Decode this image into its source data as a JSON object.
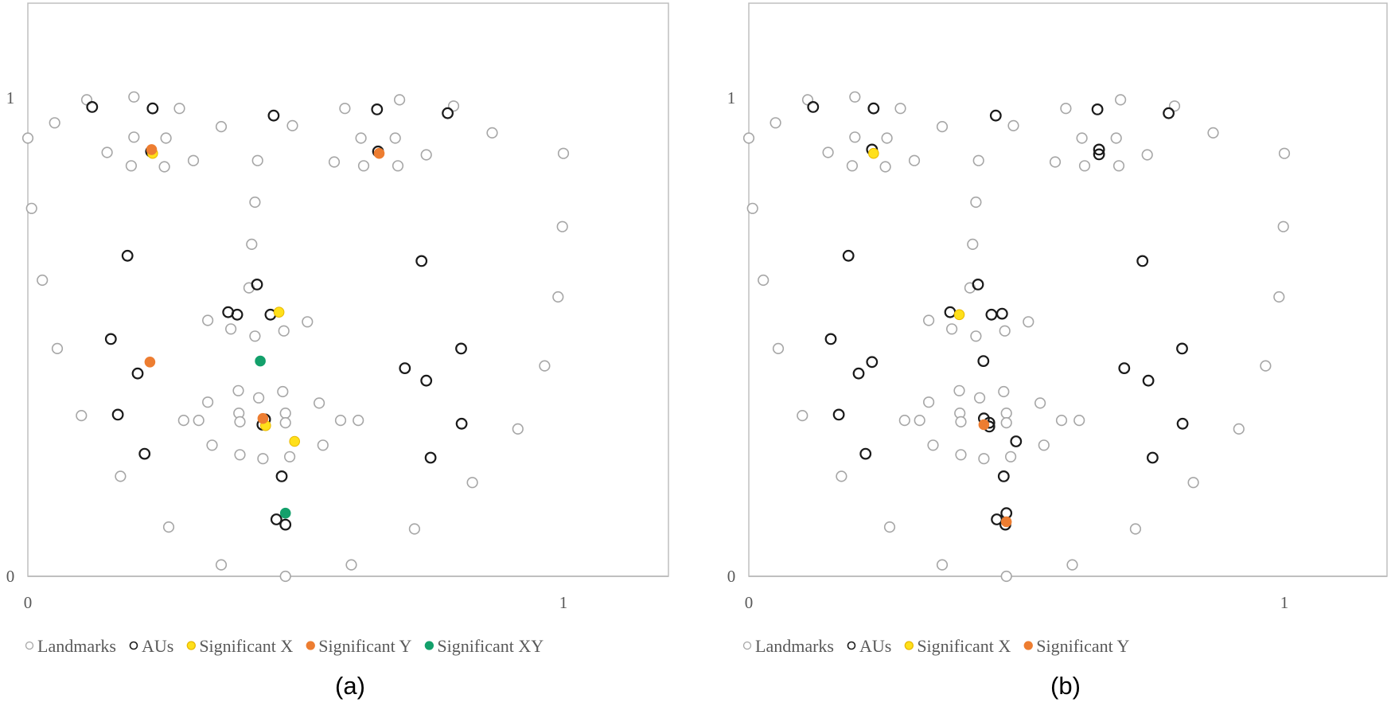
{
  "colors": {
    "landmarks": "#a6a6a6",
    "aus": "#1a1a1a",
    "significant_x": "#ffe01a",
    "significant_y": "#ed7d31",
    "significant_xy": "#13a06b",
    "axis": "#bfbfbf",
    "text": "#595959"
  },
  "chart_data": [
    {
      "type": "scatter",
      "caption": "(a)",
      "xlim": [
        0,
        1.2
      ],
      "ylim": [
        0,
        1.2
      ],
      "xticks": [
        "0",
        "1"
      ],
      "yticks": [
        "0",
        "1"
      ],
      "grid": false,
      "legend_position": "bottom",
      "legend": [
        "Landmarks",
        "AUs",
        "Significant X",
        "Significant Y",
        "Significant XY"
      ],
      "series": [
        {
          "name": "Landmarks",
          "marker": "hollow-gray",
          "points": [
            [
              0.0,
              0.916
            ],
            [
              0.05,
              0.948
            ],
            [
              0.11,
              0.996
            ],
            [
              0.198,
              1.002
            ],
            [
              0.283,
              0.978
            ],
            [
              0.361,
              0.94
            ],
            [
              0.494,
              0.942
            ],
            [
              0.592,
              0.978
            ],
            [
              0.694,
              0.996
            ],
            [
              0.795,
              0.983
            ],
            [
              0.867,
              0.927
            ],
            [
              1.0,
              0.884
            ],
            [
              0.148,
              0.886
            ],
            [
              0.198,
              0.918
            ],
            [
              0.258,
              0.916
            ],
            [
              0.193,
              0.858
            ],
            [
              0.255,
              0.856
            ],
            [
              0.309,
              0.869
            ],
            [
              0.429,
              0.869
            ],
            [
              0.572,
              0.866
            ],
            [
              0.622,
              0.916
            ],
            [
              0.686,
              0.916
            ],
            [
              0.627,
              0.858
            ],
            [
              0.691,
              0.858
            ],
            [
              0.744,
              0.881
            ],
            [
              0.007,
              0.769
            ],
            [
              0.424,
              0.782
            ],
            [
              0.418,
              0.694
            ],
            [
              0.998,
              0.731
            ],
            [
              0.027,
              0.619
            ],
            [
              0.413,
              0.603
            ],
            [
              0.99,
              0.584
            ],
            [
              0.336,
              0.535
            ],
            [
              0.379,
              0.517
            ],
            [
              0.424,
              0.502
            ],
            [
              0.478,
              0.513
            ],
            [
              0.522,
              0.532
            ],
            [
              0.055,
              0.476
            ],
            [
              0.965,
              0.44
            ],
            [
              0.393,
              0.388
            ],
            [
              0.431,
              0.373
            ],
            [
              0.476,
              0.386
            ],
            [
              0.336,
              0.364
            ],
            [
              0.544,
              0.362
            ],
            [
              0.1,
              0.336
            ],
            [
              0.291,
              0.326
            ],
            [
              0.319,
              0.326
            ],
            [
              0.394,
              0.341
            ],
            [
              0.396,
              0.323
            ],
            [
              0.481,
              0.341
            ],
            [
              0.481,
              0.321
            ],
            [
              0.584,
              0.326
            ],
            [
              0.617,
              0.326
            ],
            [
              0.915,
              0.308
            ],
            [
              0.344,
              0.274
            ],
            [
              0.551,
              0.274
            ],
            [
              0.396,
              0.254
            ],
            [
              0.439,
              0.246
            ],
            [
              0.489,
              0.25
            ],
            [
              0.173,
              0.209
            ],
            [
              0.83,
              0.196
            ],
            [
              0.263,
              0.103
            ],
            [
              0.722,
              0.099
            ],
            [
              0.361,
              0.024
            ],
            [
              0.604,
              0.024
            ],
            [
              0.481,
              0.0
            ]
          ]
        },
        {
          "name": "AUs",
          "marker": "hollow-black",
          "points": [
            [
              0.12,
              0.981
            ],
            [
              0.233,
              0.978
            ],
            [
              0.459,
              0.963
            ],
            [
              0.652,
              0.976
            ],
            [
              0.784,
              0.968
            ],
            [
              0.23,
              0.888
            ],
            [
              0.654,
              0.888
            ],
            [
              0.186,
              0.67
            ],
            [
              0.735,
              0.659
            ],
            [
              0.428,
              0.61
            ],
            [
              0.374,
              0.552
            ],
            [
              0.391,
              0.547
            ],
            [
              0.453,
              0.547
            ],
            [
              0.155,
              0.496
            ],
            [
              0.809,
              0.476
            ],
            [
              0.205,
              0.424
            ],
            [
              0.704,
              0.435
            ],
            [
              0.744,
              0.409
            ],
            [
              0.168,
              0.338
            ],
            [
              0.443,
              0.328
            ],
            [
              0.438,
              0.317
            ],
            [
              0.81,
              0.319
            ],
            [
              0.218,
              0.256
            ],
            [
              0.752,
              0.248
            ],
            [
              0.474,
              0.209
            ],
            [
              0.464,
              0.119
            ],
            [
              0.481,
              0.108
            ]
          ]
        },
        {
          "name": "Significant X",
          "marker": "filled-yellow",
          "points": [
            [
              0.233,
              0.884
            ],
            [
              0.469,
              0.552
            ],
            [
              0.444,
              0.315
            ],
            [
              0.498,
              0.282
            ]
          ]
        },
        {
          "name": "Significant Y",
          "marker": "filled-orange",
          "points": [
            [
              0.231,
              0.892
            ],
            [
              0.656,
              0.884
            ],
            [
              0.228,
              0.448
            ],
            [
              0.439,
              0.33
            ]
          ]
        },
        {
          "name": "Significant XY",
          "marker": "filled-green",
          "points": [
            [
              0.434,
              0.45
            ],
            [
              0.481,
              0.132
            ]
          ]
        }
      ]
    },
    {
      "type": "scatter",
      "caption": "(b)",
      "xlim": [
        0,
        1.2
      ],
      "ylim": [
        0,
        1.2
      ],
      "xticks": [
        "0",
        "1"
      ],
      "yticks": [
        "0",
        "1"
      ],
      "grid": false,
      "legend_position": "bottom",
      "legend": [
        "Landmarks",
        "AUs",
        "Significant X",
        "Significant Y"
      ],
      "series": [
        {
          "name": "Landmarks",
          "marker": "hollow-gray",
          "points": [
            [
              0.0,
              0.916
            ],
            [
              0.05,
              0.948
            ],
            [
              0.11,
              0.996
            ],
            [
              0.198,
              1.002
            ],
            [
              0.283,
              0.978
            ],
            [
              0.361,
              0.94
            ],
            [
              0.494,
              0.942
            ],
            [
              0.592,
              0.978
            ],
            [
              0.694,
              0.996
            ],
            [
              0.795,
              0.983
            ],
            [
              0.867,
              0.927
            ],
            [
              1.0,
              0.884
            ],
            [
              0.148,
              0.886
            ],
            [
              0.198,
              0.918
            ],
            [
              0.258,
              0.916
            ],
            [
              0.193,
              0.858
            ],
            [
              0.255,
              0.856
            ],
            [
              0.309,
              0.869
            ],
            [
              0.429,
              0.869
            ],
            [
              0.572,
              0.866
            ],
            [
              0.622,
              0.916
            ],
            [
              0.686,
              0.916
            ],
            [
              0.627,
              0.858
            ],
            [
              0.691,
              0.858
            ],
            [
              0.744,
              0.881
            ],
            [
              0.007,
              0.769
            ],
            [
              0.424,
              0.782
            ],
            [
              0.418,
              0.694
            ],
            [
              0.998,
              0.731
            ],
            [
              0.027,
              0.619
            ],
            [
              0.413,
              0.603
            ],
            [
              0.99,
              0.584
            ],
            [
              0.336,
              0.535
            ],
            [
              0.379,
              0.517
            ],
            [
              0.424,
              0.502
            ],
            [
              0.478,
              0.513
            ],
            [
              0.522,
              0.532
            ],
            [
              0.055,
              0.476
            ],
            [
              0.965,
              0.44
            ],
            [
              0.393,
              0.388
            ],
            [
              0.431,
              0.373
            ],
            [
              0.476,
              0.386
            ],
            [
              0.336,
              0.364
            ],
            [
              0.544,
              0.362
            ],
            [
              0.1,
              0.336
            ],
            [
              0.291,
              0.326
            ],
            [
              0.319,
              0.326
            ],
            [
              0.394,
              0.341
            ],
            [
              0.396,
              0.323
            ],
            [
              0.481,
              0.341
            ],
            [
              0.481,
              0.321
            ],
            [
              0.584,
              0.326
            ],
            [
              0.617,
              0.326
            ],
            [
              0.915,
              0.308
            ],
            [
              0.344,
              0.274
            ],
            [
              0.551,
              0.274
            ],
            [
              0.396,
              0.254
            ],
            [
              0.439,
              0.246
            ],
            [
              0.489,
              0.25
            ],
            [
              0.173,
              0.209
            ],
            [
              0.83,
              0.196
            ],
            [
              0.263,
              0.103
            ],
            [
              0.722,
              0.099
            ],
            [
              0.361,
              0.024
            ],
            [
              0.604,
              0.024
            ],
            [
              0.481,
              0.0
            ]
          ]
        },
        {
          "name": "AUs",
          "marker": "hollow-black",
          "points": [
            [
              0.12,
              0.981
            ],
            [
              0.233,
              0.978
            ],
            [
              0.461,
              0.963
            ],
            [
              0.651,
              0.976
            ],
            [
              0.784,
              0.968
            ],
            [
              0.23,
              0.892
            ],
            [
              0.654,
              0.892
            ],
            [
              0.654,
              0.882
            ],
            [
              0.186,
              0.67
            ],
            [
              0.735,
              0.659
            ],
            [
              0.428,
              0.61
            ],
            [
              0.376,
              0.552
            ],
            [
              0.453,
              0.547
            ],
            [
              0.473,
              0.549
            ],
            [
              0.153,
              0.496
            ],
            [
              0.809,
              0.476
            ],
            [
              0.23,
              0.448
            ],
            [
              0.205,
              0.424
            ],
            [
              0.438,
              0.45
            ],
            [
              0.701,
              0.435
            ],
            [
              0.746,
              0.409
            ],
            [
              0.168,
              0.338
            ],
            [
              0.439,
              0.33
            ],
            [
              0.449,
              0.321
            ],
            [
              0.449,
              0.313
            ],
            [
              0.81,
              0.319
            ],
            [
              0.499,
              0.282
            ],
            [
              0.218,
              0.256
            ],
            [
              0.754,
              0.248
            ],
            [
              0.476,
              0.209
            ],
            [
              0.463,
              0.119
            ],
            [
              0.481,
              0.132
            ],
            [
              0.479,
              0.108
            ]
          ]
        },
        {
          "name": "Significant X",
          "marker": "filled-yellow",
          "points": [
            [
              0.233,
              0.884
            ],
            [
              0.393,
              0.547
            ]
          ]
        },
        {
          "name": "Significant Y",
          "marker": "filled-orange",
          "points": [
            [
              0.439,
              0.317
            ],
            [
              0.481,
              0.114
            ]
          ]
        }
      ]
    }
  ]
}
